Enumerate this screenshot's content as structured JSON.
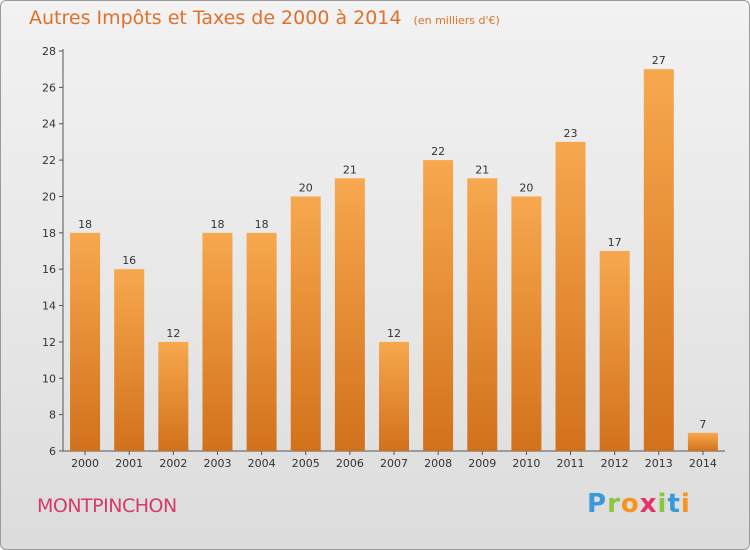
{
  "title": "Autres Impôts et Taxes de 2000 à 2014",
  "subtitle": "(en milliers d'€)",
  "commune": "MONTPINCHON",
  "logo": "Proxiti",
  "colors": {
    "bar_top": "#f7a84e",
    "bar_bottom": "#d2711c",
    "title": "#e0702a",
    "commune": "#d63a6a"
  },
  "chart_data": {
    "type": "bar",
    "title": "Autres Impôts et Taxes de 2000 à 2014",
    "subtitle": "(en milliers d'€)",
    "categories": [
      "2000",
      "2001",
      "2002",
      "2003",
      "2004",
      "2005",
      "2006",
      "2007",
      "2008",
      "2009",
      "2010",
      "2011",
      "2012",
      "2013",
      "2014"
    ],
    "values": [
      18,
      16,
      12,
      18,
      18,
      20,
      21,
      12,
      22,
      21,
      20,
      23,
      17,
      27,
      7
    ],
    "ylim": [
      6,
      28
    ],
    "yticks": [
      6,
      8,
      10,
      12,
      14,
      16,
      18,
      20,
      22,
      24,
      26,
      28
    ],
    "grid": false,
    "data_labels": true
  }
}
